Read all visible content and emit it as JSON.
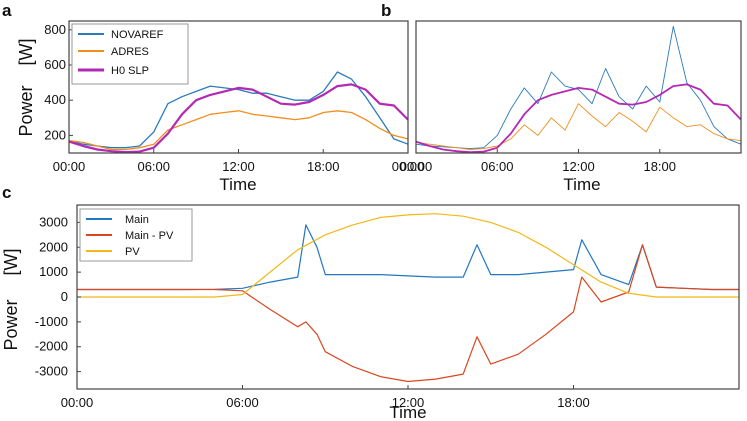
{
  "colors": {
    "novaref": "#2b7bba",
    "adres": "#f28e1c",
    "h0slp": "#b429b4",
    "main": "#2277c2",
    "main_pv": "#d9461e",
    "pv": "#f2b817",
    "frame": "#444444",
    "text": "#111111"
  },
  "chart_data": [
    {
      "panel": "a",
      "type": "line",
      "xlabel": "Time",
      "ylabel": "Power",
      "yunit": "[W]",
      "xlim": [
        0,
        24
      ],
      "ylim": [
        100,
        850
      ],
      "x_ticks": [
        0,
        6,
        12,
        18,
        24
      ],
      "x_tick_labels": [
        "00:00",
        "06:00",
        "12:00",
        "18:00",
        "00:00"
      ],
      "y_ticks": [
        200,
        400,
        600,
        800
      ],
      "y_tick_labels": [
        "200",
        "400",
        "600",
        "800"
      ],
      "legend": "top-left",
      "grid": false,
      "series": [
        {
          "name": "NOVAREF",
          "color_key": "novaref",
          "x": [
            0,
            1,
            2,
            3,
            4,
            5,
            6,
            7,
            8,
            9,
            10,
            11,
            12,
            13,
            14,
            15,
            16,
            17,
            18,
            19,
            20,
            21,
            22,
            23,
            24
          ],
          "values": [
            170,
            150,
            140,
            130,
            130,
            140,
            220,
            380,
            420,
            450,
            480,
            470,
            460,
            440,
            440,
            420,
            400,
            400,
            450,
            560,
            520,
            420,
            300,
            180,
            150
          ]
        },
        {
          "name": "ADRES",
          "color_key": "adres",
          "x": [
            0,
            1,
            2,
            3,
            4,
            5,
            6,
            7,
            8,
            9,
            10,
            11,
            12,
            13,
            14,
            15,
            16,
            17,
            18,
            19,
            20,
            21,
            22,
            23,
            24
          ],
          "values": [
            170,
            160,
            140,
            120,
            120,
            130,
            150,
            230,
            260,
            290,
            320,
            330,
            340,
            320,
            310,
            300,
            290,
            300,
            330,
            340,
            330,
            290,
            240,
            200,
            180
          ]
        },
        {
          "name": "H0 SLP",
          "color_key": "h0slp",
          "x": [
            0,
            1,
            2,
            3,
            4,
            5,
            6,
            7,
            8,
            9,
            10,
            11,
            12,
            13,
            14,
            15,
            16,
            17,
            18,
            19,
            20,
            21,
            22,
            23,
            24
          ],
          "values": [
            165,
            140,
            120,
            110,
            105,
            108,
            130,
            210,
            320,
            400,
            430,
            450,
            470,
            460,
            420,
            380,
            375,
            390,
            430,
            480,
            490,
            460,
            380,
            370,
            290
          ]
        }
      ]
    },
    {
      "panel": "b",
      "type": "line",
      "xlabel": "Time",
      "ylabel": "",
      "xlim": [
        0,
        24
      ],
      "ylim": [
        100,
        850
      ],
      "x_ticks": [
        0,
        6,
        12,
        18
      ],
      "x_tick_labels": [
        "00:00",
        "06:00",
        "12:00",
        "18:00"
      ],
      "grid": false,
      "series": [
        {
          "color_key": "novaref",
          "x": [
            0,
            1,
            2,
            3,
            4,
            5,
            6,
            7,
            8,
            9,
            10,
            11,
            12,
            13,
            14,
            15,
            16,
            17,
            18,
            19,
            20,
            21,
            22,
            23,
            24
          ],
          "values": [
            150,
            140,
            135,
            130,
            125,
            130,
            200,
            350,
            470,
            380,
            560,
            480,
            460,
            380,
            580,
            420,
            350,
            480,
            390,
            820,
            500,
            400,
            250,
            180,
            150
          ]
        },
        {
          "color_key": "adres",
          "x": [
            0,
            1,
            2,
            3,
            4,
            5,
            6,
            7,
            8,
            9,
            10,
            11,
            12,
            13,
            14,
            15,
            16,
            17,
            18,
            19,
            20,
            21,
            22,
            23,
            24
          ],
          "values": [
            160,
            150,
            140,
            130,
            120,
            125,
            140,
            180,
            260,
            200,
            300,
            230,
            380,
            310,
            250,
            330,
            280,
            220,
            360,
            300,
            250,
            260,
            210,
            180,
            170
          ]
        },
        {
          "color_key": "h0slp",
          "x": [
            0,
            1,
            2,
            3,
            4,
            5,
            6,
            7,
            8,
            9,
            10,
            11,
            12,
            13,
            14,
            15,
            16,
            17,
            18,
            19,
            20,
            21,
            22,
            23,
            24
          ],
          "values": [
            165,
            140,
            120,
            110,
            105,
            108,
            130,
            210,
            320,
            400,
            430,
            450,
            470,
            460,
            420,
            380,
            375,
            390,
            430,
            480,
            490,
            460,
            380,
            370,
            290
          ]
        }
      ]
    },
    {
      "panel": "c",
      "type": "line",
      "xlabel": "Time",
      "ylabel": "Power",
      "yunit": "[W]",
      "xlim": [
        0,
        24
      ],
      "ylim": [
        -3700,
        3700
      ],
      "x_ticks": [
        0,
        6,
        12,
        18
      ],
      "x_tick_labels": [
        "00:00",
        "06:00",
        "12:00",
        "18:00"
      ],
      "y_ticks": [
        -3000,
        -2000,
        -1000,
        0,
        1000,
        2000,
        3000
      ],
      "y_tick_labels": [
        "-3000",
        "-2000",
        "-1000",
        "0",
        "1000",
        "2000",
        "3000"
      ],
      "legend": "top-left",
      "grid": false,
      "series": [
        {
          "name": "Main",
          "color_key": "main",
          "x": [
            0,
            1,
            2,
            3,
            4,
            5,
            6,
            7,
            8,
            8.3,
            8.7,
            9,
            10,
            11,
            12,
            13,
            14,
            14.5,
            15,
            16,
            17,
            18,
            18.3,
            19,
            20,
            20.5,
            21,
            22,
            23,
            24
          ],
          "values": [
            300,
            300,
            300,
            300,
            300,
            310,
            350,
            600,
            800,
            2900,
            2000,
            900,
            900,
            900,
            850,
            800,
            800,
            2100,
            900,
            900,
            1000,
            1100,
            2300,
            900,
            500,
            2100,
            400,
            350,
            300,
            300
          ]
        },
        {
          "name": "Main - PV",
          "color_key": "main_pv",
          "x": [
            0,
            1,
            2,
            3,
            4,
            5,
            6,
            7,
            8,
            8.3,
            8.7,
            9,
            10,
            11,
            12,
            13,
            14,
            14.5,
            15,
            16,
            17,
            18,
            18.3,
            19,
            20,
            20.5,
            21,
            22,
            23,
            24
          ],
          "values": [
            300,
            300,
            300,
            300,
            300,
            300,
            250,
            -500,
            -1200,
            -1000,
            -1500,
            -2200,
            -2800,
            -3200,
            -3400,
            -3300,
            -3100,
            -1600,
            -2700,
            -2300,
            -1500,
            -600,
            800,
            -200,
            200,
            2100,
            400,
            350,
            300,
            300
          ]
        },
        {
          "name": "PV",
          "color_key": "pv",
          "x": [
            0,
            1,
            2,
            3,
            4,
            5,
            6,
            7,
            8,
            9,
            10,
            11,
            12,
            13,
            14,
            15,
            16,
            17,
            18,
            19,
            20,
            21,
            22,
            23,
            24
          ],
          "values": [
            0,
            0,
            0,
            0,
            0,
            0,
            100,
            1000,
            1900,
            2500,
            2900,
            3200,
            3300,
            3350,
            3250,
            3000,
            2600,
            2000,
            1300,
            600,
            150,
            0,
            0,
            0,
            0
          ]
        }
      ]
    }
  ]
}
